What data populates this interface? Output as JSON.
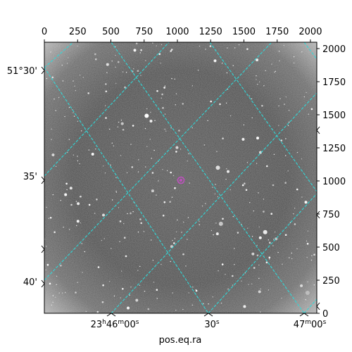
{
  "figure": {
    "xlabel": "pos.eq.ra",
    "pixel_x_ticks": [
      "0",
      "250",
      "500",
      "750",
      "1000",
      "1250",
      "1500",
      "1750",
      "2000"
    ],
    "pixel_y_ticks": [
      "0",
      "250",
      "500",
      "750",
      "1000",
      "1250",
      "1500",
      "1750",
      "2000"
    ],
    "dec_ticks": [
      "51°30'",
      "35'",
      "40'"
    ],
    "ra_ticks": [
      {
        "h": "23",
        "hs": "h",
        "m": "46",
        "ms": "m",
        "s": "00",
        "ss": "s"
      },
      {
        "s": "30",
        "ss": "s"
      },
      {
        "m": "47",
        "ms": "m",
        "s": "00",
        "ss": "s"
      }
    ],
    "grid_color": "#30d8d8",
    "marker_color": "#c050c0"
  }
}
